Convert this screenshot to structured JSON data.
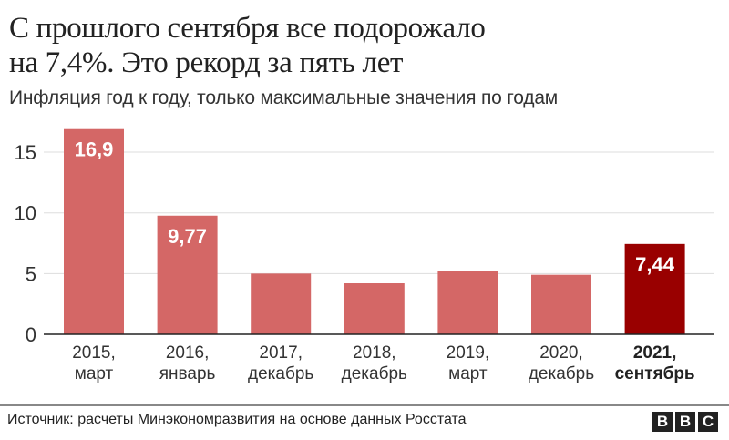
{
  "title_line1": "С прошлого сентября все подорожало",
  "title_line2": "на 7,4%. Это рекорд за пять лет",
  "subtitle": "Инфляция год к году, только максимальные значения по годам",
  "source": "Источник: расчеты Минэкономразвития на основе данных Росстата",
  "logo": [
    "B",
    "B",
    "C"
  ],
  "chart_data": {
    "type": "bar",
    "categories": [
      [
        "2015,",
        "март"
      ],
      [
        "2016,",
        "январь"
      ],
      [
        "2017,",
        "декабрь"
      ],
      [
        "2018,",
        "декабрь"
      ],
      [
        "2019,",
        "март"
      ],
      [
        "2020,",
        "декабрь"
      ],
      [
        "2021,",
        "сентябрь"
      ]
    ],
    "values": [
      16.9,
      9.77,
      5.0,
      4.2,
      5.2,
      4.9,
      7.44
    ],
    "data_labels": [
      "16,9",
      "9,77",
      "",
      "",
      "",
      "",
      "7,44"
    ],
    "highlight_index": 6,
    "yticks": [
      0,
      5,
      10,
      15
    ],
    "ylim": [
      0,
      17.5
    ],
    "grid": true,
    "colors": {
      "bar": "#d46766",
      "highlight": "#990000",
      "grid": "#dddddd",
      "axis": "#222222"
    }
  }
}
